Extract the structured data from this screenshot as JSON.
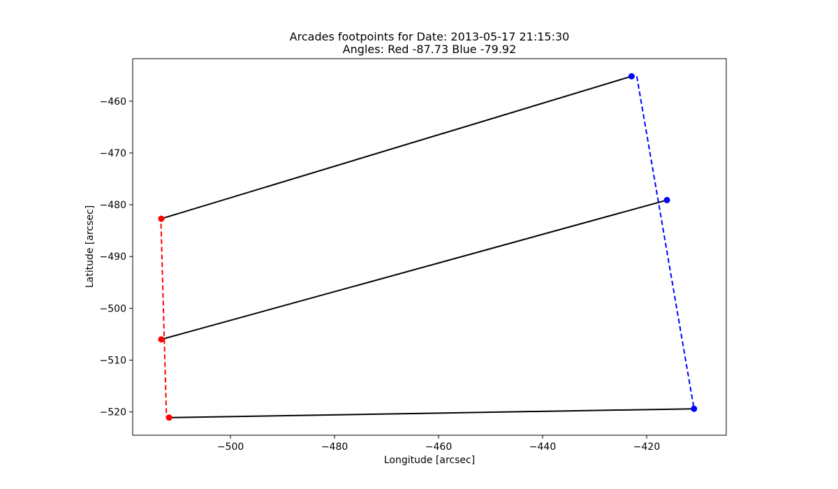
{
  "chart_data": {
    "type": "scatter",
    "title_line1": "Arcades footpoints for Date: 2013-05-17 21:15:30",
    "title_line2": "Angles: Red -87.73 Blue -79.92",
    "xlabel": "Longitude [arcsec]",
    "ylabel": "Latitude [arcsec]",
    "xlim": [
      -518.8,
      -404.7
    ],
    "ylim": [
      -524.5,
      -451.8
    ],
    "grid": false,
    "xticks": [
      -500,
      -480,
      -460,
      -440,
      -420
    ],
    "xtick_labels": [
      "−500",
      "−480",
      "−460",
      "−440",
      "−420"
    ],
    "yticks": [
      -460,
      -470,
      -480,
      -490,
      -500,
      -510,
      -520
    ],
    "ytick_labels": [
      "−460",
      "−470",
      "−480",
      "−490",
      "−500",
      "−510",
      "−520"
    ],
    "colors": {
      "red": "#ff0000",
      "blue": "#0000ff",
      "black": "#000000"
    },
    "red_points": [
      {
        "x": -513.3,
        "y": -482.7
      },
      {
        "x": -513.3,
        "y": -506.0
      },
      {
        "x": -511.8,
        "y": -521.1
      }
    ],
    "blue_points": [
      {
        "x": -422.9,
        "y": -455.2
      },
      {
        "x": -416.1,
        "y": -479.1
      },
      {
        "x": -410.9,
        "y": -519.4
      }
    ],
    "arcades": [
      {
        "from": {
          "x": -513.3,
          "y": -482.7
        },
        "to": {
          "x": -422.9,
          "y": -455.2
        }
      },
      {
        "from": {
          "x": -513.3,
          "y": -506.0
        },
        "to": {
          "x": -416.1,
          "y": -479.1
        }
      },
      {
        "from": {
          "x": -511.8,
          "y": -521.1
        },
        "to": {
          "x": -410.9,
          "y": -519.4
        }
      }
    ],
    "red_fit_line": [
      {
        "x": -513.4,
        "y": -482.2
      },
      {
        "x": -512.3,
        "y": -521.1
      }
    ],
    "blue_fit_line": [
      {
        "x": -421.9,
        "y": -455.2
      },
      {
        "x": -410.9,
        "y": -519.4
      }
    ]
  }
}
